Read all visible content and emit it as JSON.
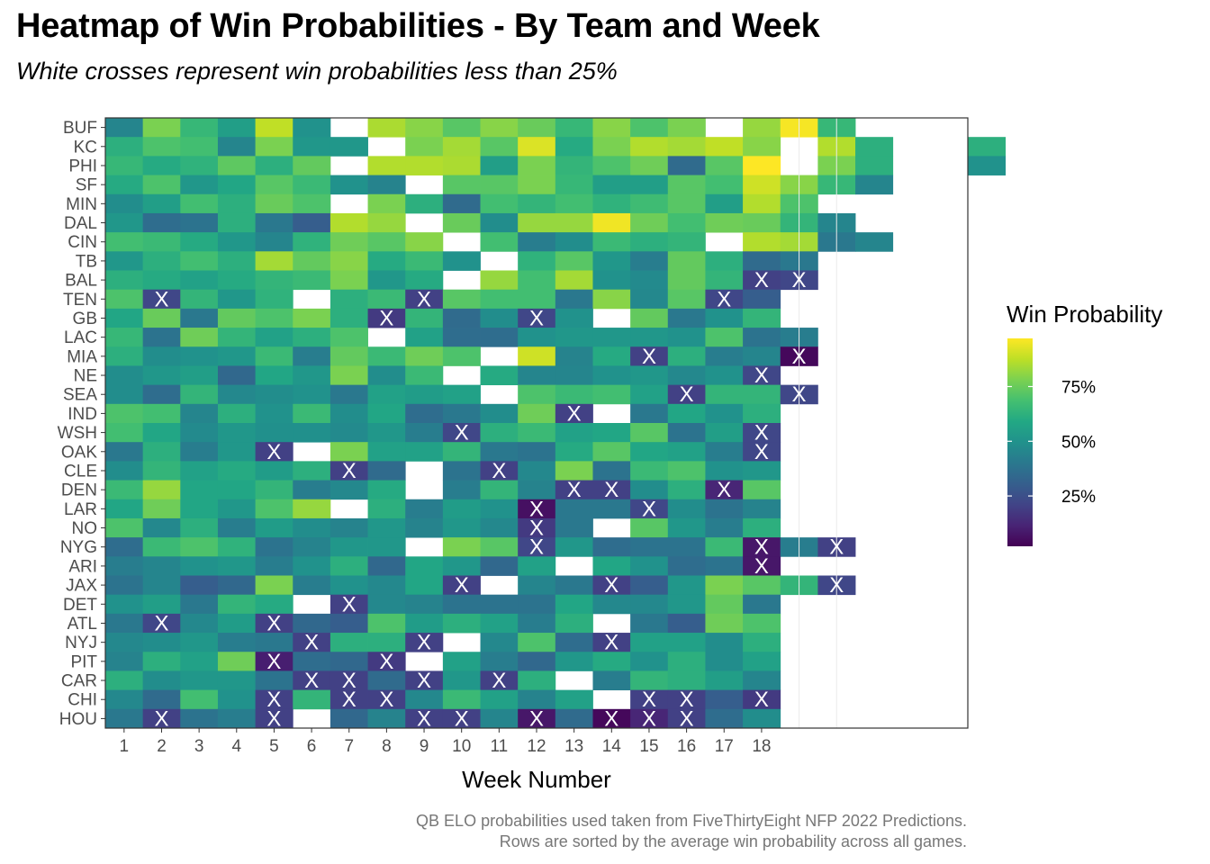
{
  "title": "Heatmap of Win Probabilities - By Team and Week",
  "subtitle": "White crosses represent win probabilities less than 25%",
  "caption_line1": "QB ELO probabilities used taken from FiveThirtyEight NFP 2022 Predictions.",
  "caption_line2": "Rows are sorted by the average win probability across all games.",
  "chart_data": {
    "type": "heatmap",
    "xlabel": "Week Number",
    "x_ticks": [
      1,
      2,
      3,
      4,
      5,
      6,
      7,
      8,
      9,
      10,
      11,
      12,
      13,
      14,
      15,
      16,
      17,
      18
    ],
    "xlim": [
      0.5,
      23.5
    ],
    "teams": [
      "BUF",
      "KC",
      "PHI",
      "SF",
      "MIN",
      "DAL",
      "CIN",
      "TB",
      "BAL",
      "TEN",
      "GB",
      "LAC",
      "MIA",
      "NE",
      "SEA",
      "IND",
      "WSH",
      "OAK",
      "CLE",
      "DEN",
      "LAR",
      "NO",
      "NYG",
      "ARI",
      "JAX",
      "DET",
      "ATL",
      "NYJ",
      "PIT",
      "CAR",
      "CHI",
      "HOU"
    ],
    "colorscale": "viridis",
    "marker": "X",
    "marker_threshold": 0.25,
    "legend": {
      "title": "Win Probability",
      "ticks": [
        "25%",
        "50%",
        "75%"
      ],
      "tick_values": [
        0.25,
        0.5,
        0.75
      ],
      "range": [
        0.02,
        0.97
      ]
    },
    "values": {
      "BUF": [
        0.45,
        0.78,
        0.65,
        0.55,
        0.88,
        0.5,
        null,
        0.85,
        0.8,
        0.72,
        0.8,
        0.75,
        0.65,
        0.8,
        0.7,
        0.78,
        null,
        0.82,
        0.96,
        0.65
      ],
      "KC": [
        0.62,
        0.7,
        0.68,
        0.45,
        0.78,
        0.52,
        0.52,
        null,
        0.78,
        0.84,
        0.72,
        0.92,
        0.6,
        0.78,
        0.86,
        0.84,
        0.88,
        0.8,
        null,
        0.86,
        0.62,
        null,
        null,
        0.62
      ],
      "PHI": [
        0.65,
        0.6,
        0.63,
        0.73,
        0.62,
        0.74,
        null,
        0.86,
        0.86,
        0.85,
        0.55,
        0.78,
        0.64,
        0.7,
        0.76,
        0.35,
        0.72,
        0.97,
        null,
        0.78,
        0.62,
        null,
        null,
        0.5
      ],
      "SF": [
        0.6,
        0.7,
        0.52,
        0.58,
        0.72,
        0.66,
        0.5,
        0.44,
        null,
        0.72,
        0.72,
        0.78,
        0.65,
        0.55,
        0.55,
        0.72,
        0.68,
        0.9,
        0.8,
        0.65,
        0.45
      ],
      "MIN": [
        0.48,
        0.55,
        0.68,
        0.62,
        0.75,
        0.7,
        null,
        0.78,
        0.62,
        0.35,
        0.68,
        0.64,
        0.68,
        0.63,
        0.67,
        0.72,
        0.55,
        0.86,
        0.7
      ],
      "DAL": [
        0.52,
        0.36,
        0.38,
        0.62,
        0.4,
        0.3,
        0.86,
        0.82,
        null,
        0.75,
        0.48,
        0.82,
        0.82,
        0.95,
        0.76,
        0.68,
        0.76,
        0.75,
        0.64,
        0.45
      ],
      "CIN": [
        0.68,
        0.66,
        0.6,
        0.52,
        0.45,
        0.63,
        0.76,
        0.72,
        0.8,
        null,
        0.68,
        0.42,
        0.48,
        0.66,
        0.62,
        0.64,
        null,
        0.86,
        0.84,
        0.4,
        0.45
      ],
      "TB": [
        0.52,
        0.62,
        0.68,
        0.62,
        0.84,
        0.74,
        0.8,
        0.6,
        0.66,
        0.5,
        null,
        0.63,
        0.72,
        0.52,
        0.42,
        0.74,
        0.62,
        0.35,
        0.4
      ],
      "BAL": [
        0.62,
        0.6,
        0.56,
        0.6,
        0.64,
        0.66,
        0.78,
        0.52,
        0.6,
        null,
        0.82,
        0.68,
        0.84,
        0.5,
        0.47,
        0.74,
        0.64,
        0.2,
        0.22
      ],
      "TEN": [
        0.7,
        0.22,
        0.64,
        0.52,
        0.63,
        null,
        0.62,
        0.66,
        0.2,
        0.72,
        0.68,
        0.68,
        0.4,
        0.8,
        0.46,
        0.72,
        0.22,
        0.3
      ],
      "GB": [
        0.58,
        0.75,
        0.4,
        0.74,
        0.7,
        0.78,
        0.62,
        0.18,
        0.64,
        0.35,
        0.48,
        0.22,
        0.5,
        null,
        0.74,
        0.4,
        0.5,
        0.64
      ],
      "LAC": [
        0.65,
        0.38,
        0.76,
        0.64,
        0.56,
        0.62,
        0.7,
        null,
        0.56,
        0.36,
        0.36,
        0.5,
        0.52,
        0.52,
        0.52,
        0.5,
        0.7,
        0.38,
        0.42
      ],
      "MIA": [
        0.62,
        0.48,
        0.5,
        0.52,
        0.66,
        0.42,
        0.74,
        0.66,
        0.76,
        0.7,
        null,
        0.9,
        0.44,
        0.6,
        0.2,
        0.62,
        0.42,
        0.45,
        0.04
      ],
      "NE": [
        0.48,
        0.52,
        0.55,
        0.34,
        0.58,
        0.52,
        0.78,
        0.48,
        0.66,
        null,
        0.6,
        0.45,
        0.45,
        0.5,
        0.52,
        0.46,
        0.5,
        0.22
      ],
      "SEA": [
        0.48,
        0.36,
        0.64,
        0.46,
        0.48,
        0.5,
        0.4,
        0.56,
        0.54,
        0.56,
        null,
        0.7,
        0.66,
        0.68,
        0.56,
        0.2,
        0.64,
        0.64,
        0.22
      ],
      "IND": [
        0.7,
        0.68,
        0.45,
        0.62,
        0.5,
        0.66,
        0.48,
        0.58,
        0.36,
        0.4,
        0.48,
        0.76,
        0.2,
        null,
        0.4,
        0.58,
        0.5,
        0.62
      ],
      "WSH": [
        0.68,
        0.58,
        0.47,
        0.52,
        0.49,
        0.49,
        0.47,
        0.52,
        0.42,
        0.22,
        0.62,
        0.66,
        0.56,
        0.58,
        0.72,
        0.38,
        0.55,
        0.22
      ],
      "OAK": [
        0.4,
        0.62,
        0.42,
        0.52,
        0.2,
        null,
        0.78,
        0.56,
        0.56,
        0.64,
        0.4,
        0.38,
        0.6,
        0.72,
        0.58,
        0.56,
        0.42,
        0.22
      ],
      "CLE": [
        0.48,
        0.64,
        0.56,
        0.6,
        0.54,
        0.62,
        0.2,
        0.35,
        null,
        0.38,
        0.2,
        0.46,
        0.78,
        0.38,
        0.66,
        0.7,
        0.5,
        0.52
      ],
      "DEN": [
        0.66,
        0.82,
        0.58,
        0.58,
        0.64,
        0.42,
        0.46,
        0.6,
        null,
        0.42,
        0.64,
        0.44,
        0.2,
        0.2,
        0.48,
        0.62,
        0.12,
        0.72
      ],
      "LAR": [
        0.58,
        0.76,
        0.58,
        0.52,
        0.7,
        0.82,
        null,
        0.62,
        0.42,
        0.54,
        0.5,
        0.06,
        0.4,
        0.4,
        0.22,
        0.48,
        0.38,
        0.44
      ],
      "NO": [
        0.7,
        0.46,
        0.62,
        0.42,
        0.54,
        0.48,
        0.44,
        0.52,
        0.44,
        0.52,
        0.46,
        0.18,
        0.4,
        null,
        0.72,
        0.52,
        0.42,
        0.62
      ],
      "NYG": [
        0.36,
        0.66,
        0.7,
        0.63,
        0.38,
        0.44,
        0.52,
        0.52,
        null,
        0.78,
        0.72,
        0.22,
        0.52,
        0.36,
        0.38,
        0.38,
        0.66,
        0.08,
        0.42,
        0.2
      ],
      "ARI": [
        0.42,
        0.45,
        0.5,
        0.52,
        0.42,
        0.5,
        0.62,
        0.34,
        0.58,
        0.52,
        0.34,
        0.56,
        null,
        0.58,
        0.5,
        0.36,
        0.38,
        0.08
      ],
      "JAX": [
        0.38,
        0.45,
        0.3,
        0.34,
        0.78,
        0.42,
        0.5,
        0.46,
        0.58,
        0.2,
        null,
        0.45,
        0.4,
        0.2,
        0.3,
        0.52,
        0.78,
        0.72,
        0.64,
        0.22
      ],
      "DET": [
        0.5,
        0.55,
        0.4,
        0.64,
        0.6,
        null,
        0.2,
        0.46,
        0.44,
        0.38,
        0.38,
        0.38,
        0.58,
        0.46,
        0.46,
        0.52,
        0.74,
        0.4
      ],
      "ATL": [
        0.4,
        0.22,
        0.46,
        0.54,
        0.2,
        0.34,
        0.3,
        0.7,
        0.54,
        0.62,
        0.56,
        0.42,
        0.62,
        null,
        0.4,
        0.3,
        0.76,
        0.7
      ],
      "NYJ": [
        0.46,
        0.48,
        0.52,
        0.42,
        0.4,
        0.2,
        0.62,
        0.62,
        0.2,
        null,
        0.46,
        0.7,
        0.36,
        0.2,
        0.56,
        0.56,
        0.48,
        0.62
      ],
      "PIT": [
        0.44,
        0.62,
        0.56,
        0.76,
        0.1,
        0.36,
        0.34,
        0.18,
        null,
        0.56,
        0.42,
        0.34,
        0.52,
        0.6,
        0.5,
        0.62,
        0.48,
        0.56
      ],
      "CAR": [
        0.62,
        0.48,
        0.52,
        0.52,
        0.38,
        0.2,
        0.2,
        0.35,
        0.2,
        0.52,
        0.2,
        0.62,
        null,
        0.42,
        0.64,
        0.62,
        0.55,
        0.45
      ],
      "CHI": [
        0.46,
        0.35,
        0.68,
        0.5,
        0.2,
        0.64,
        0.2,
        0.2,
        0.46,
        0.66,
        0.56,
        0.44,
        0.56,
        null,
        0.2,
        0.2,
        0.3,
        0.18
      ],
      "HOU": [
        0.4,
        0.2,
        0.38,
        0.42,
        0.2,
        null,
        0.34,
        0.44,
        0.2,
        0.2,
        0.45,
        0.08,
        0.35,
        0.04,
        0.12,
        0.2,
        0.36,
        0.48
      ]
    }
  }
}
